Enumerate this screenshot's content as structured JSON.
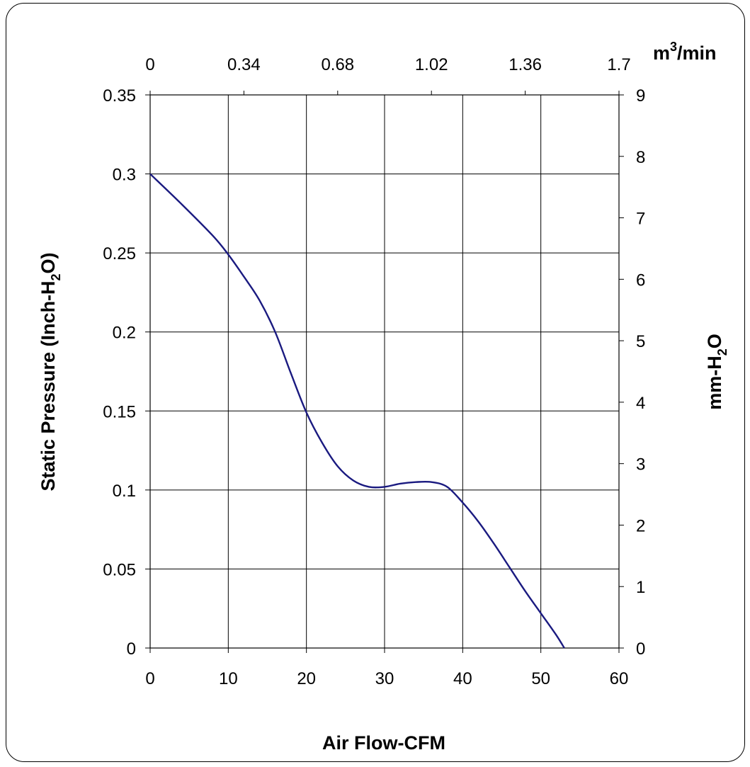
{
  "chart_data": {
    "type": "line",
    "x_axis": {
      "label": "Air Flow-CFM",
      "range": [
        0,
        60
      ],
      "ticks": [
        0,
        10,
        20,
        30,
        40,
        50,
        60
      ]
    },
    "x2_axis": {
      "unit_base": "m",
      "unit_sup": "3",
      "unit_rest": "/min",
      "range": [
        0,
        1.7
      ],
      "tick_labels": [
        "0",
        "0.34",
        "0.68",
        "1.02",
        "1.36",
        "1.7"
      ]
    },
    "y_axis": {
      "label_main": "Static Pressure (Inch-H",
      "label_sub": "2",
      "label_end": "O)",
      "range": [
        0,
        0.35
      ],
      "ticks": [
        "0",
        "0.05",
        "0.1",
        "0.15",
        "0.2",
        "0.25",
        "0.3",
        "0.35"
      ]
    },
    "y2_axis": {
      "label_main": "mm-H",
      "label_sub": "2",
      "label_end": "O",
      "range": [
        0,
        9
      ],
      "ticks": [
        "0",
        "1",
        "2",
        "3",
        "4",
        "5",
        "6",
        "7",
        "8",
        "9"
      ]
    },
    "grid": true,
    "line_color": "#1a1a80",
    "series": [
      {
        "x": [
          0,
          4,
          8,
          10,
          12,
          14,
          16,
          18,
          20,
          22,
          24,
          26,
          28,
          30,
          32,
          34,
          36,
          38,
          40,
          42,
          44,
          46,
          48,
          50,
          52,
          53
        ],
        "y": [
          0.3,
          0.281,
          0.261,
          0.249,
          0.235,
          0.22,
          0.2,
          0.174,
          0.149,
          0.13,
          0.115,
          0.106,
          0.102,
          0.102,
          0.104,
          0.105,
          0.105,
          0.102,
          0.092,
          0.08,
          0.066,
          0.051,
          0.036,
          0.022,
          0.008,
          0
        ]
      }
    ]
  }
}
